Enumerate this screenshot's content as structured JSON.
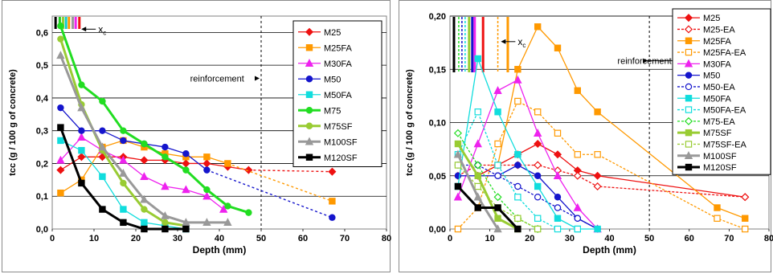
{
  "chart_data": [
    {
      "type": "line",
      "xlabel": "Depth (mm)",
      "ylabel": "tcc (g / 100 g of concrete)",
      "xlim": [
        0,
        80
      ],
      "ylim": [
        0,
        0.65
      ],
      "xticks": [
        0,
        10,
        20,
        30,
        40,
        50,
        60,
        70,
        80
      ],
      "xtick_labels": [
        "0",
        "10",
        "20",
        "30",
        "40",
        "50",
        "60",
        "70",
        "80"
      ],
      "yticks": [
        0,
        0.1,
        0.2,
        0.3,
        0.4,
        0.5,
        0.6
      ],
      "ytick_labels": [
        "0,0",
        "0,1",
        "0,2",
        "0,3",
        "0,4",
        "0,5",
        "0,6"
      ],
      "grid": "horizontal",
      "legend_position": "right",
      "annotations": [
        {
          "text": "reinforcement",
          "x": 33,
          "y": 0.46
        },
        {
          "text": "x",
          "subscript": "c",
          "x": 11,
          "y": 0.61
        }
      ],
      "reinforcement_depth": 50,
      "xc_markers": [
        {
          "x": 0.8,
          "color": "#000000"
        },
        {
          "x": 1.8,
          "color": "#22cc22"
        },
        {
          "x": 2.6,
          "color": "#99cc33"
        },
        {
          "x": 3.3,
          "color": "#11cccc"
        },
        {
          "x": 4.0,
          "color": "#ff9900"
        },
        {
          "x": 4.9,
          "color": "#999999"
        },
        {
          "x": 5.6,
          "color": "#ee22ee"
        },
        {
          "x": 6.5,
          "color": "#ee1111"
        }
      ],
      "series": [
        {
          "name": "M25",
          "color": "#ee1111",
          "marker": "diamond",
          "x": [
            2,
            7,
            12,
            17,
            22,
            27,
            32,
            37,
            42,
            47
          ],
          "y": [
            0.18,
            0.22,
            0.22,
            0.22,
            0.21,
            0.21,
            0.2,
            0.2,
            0.19,
            0.18
          ],
          "ext_x": [
            47,
            67
          ],
          "ext_y": [
            0.18,
            0.175
          ]
        },
        {
          "name": "M25FA",
          "color": "#ff9900",
          "marker": "square",
          "x": [
            2,
            7,
            12,
            17,
            22,
            27,
            32,
            37,
            42
          ],
          "y": [
            0.11,
            0.15,
            0.25,
            0.27,
            0.25,
            0.23,
            0.22,
            0.22,
            0.2
          ],
          "ext_x": [
            42,
            67
          ],
          "ext_y": [
            0.2,
            0.085
          ]
        },
        {
          "name": "M30FA",
          "color": "#ee22ee",
          "marker": "triangle",
          "x": [
            2,
            7,
            12,
            17,
            22,
            27,
            32,
            37,
            41
          ],
          "y": [
            0.21,
            0.28,
            0.24,
            0.21,
            0.16,
            0.13,
            0.12,
            0.1,
            0.06
          ]
        },
        {
          "name": "M50",
          "color": "#1515cc",
          "marker": "circle",
          "x": [
            2,
            7,
            12,
            17,
            22,
            27,
            32,
            37
          ],
          "y": [
            0.37,
            0.3,
            0.3,
            0.27,
            0.26,
            0.25,
            0.23,
            0.18
          ],
          "ext_x": [
            37,
            67
          ],
          "ext_y": [
            0.18,
            0.035
          ]
        },
        {
          "name": "M50FA",
          "color": "#11dddd",
          "marker": "square",
          "x": [
            2,
            7,
            12,
            17,
            22,
            27,
            32
          ],
          "y": [
            0.27,
            0.24,
            0.16,
            0.06,
            0.02,
            0.01,
            0.0
          ]
        },
        {
          "name": "M75",
          "color": "#22dd22",
          "marker": "circle",
          "width": 3,
          "x": [
            2,
            7,
            12,
            17,
            22,
            27,
            32,
            37,
            42,
            47
          ],
          "y": [
            0.62,
            0.44,
            0.39,
            0.3,
            0.26,
            0.22,
            0.18,
            0.12,
            0.07,
            0.05
          ]
        },
        {
          "name": "M75SF",
          "color": "#99cc33",
          "marker": "circle",
          "width": 3,
          "x": [
            2,
            7,
            12,
            17,
            22,
            27,
            32
          ],
          "y": [
            0.58,
            0.38,
            0.24,
            0.14,
            0.06,
            0.02,
            0.01
          ]
        },
        {
          "name": "M100SF",
          "color": "#999999",
          "marker": "triangle",
          "width": 3,
          "x": [
            2,
            7,
            12,
            17,
            22,
            27,
            32,
            37,
            42
          ],
          "y": [
            0.53,
            0.37,
            0.25,
            0.17,
            0.09,
            0.04,
            0.02,
            0.02,
            0.02
          ]
        },
        {
          "name": "M120SF",
          "color": "#000000",
          "marker": "square",
          "width": 3,
          "x": [
            2,
            7,
            12,
            17,
            22,
            27,
            32
          ],
          "y": [
            0.31,
            0.14,
            0.06,
            0.02,
            0.0,
            0.0,
            0.0
          ]
        }
      ]
    },
    {
      "type": "line",
      "xlabel": "Depth (mm)",
      "ylabel": "tcc (g / 100 g of concrete)",
      "xlim": [
        0,
        80
      ],
      "ylim": [
        0,
        0.2
      ],
      "xticks": [
        0,
        10,
        20,
        30,
        40,
        50,
        60,
        70,
        80
      ],
      "xtick_labels": [
        "0",
        "10",
        "20",
        "30",
        "40",
        "50",
        "60",
        "70",
        "80"
      ],
      "yticks": [
        0,
        0.05,
        0.1,
        0.15,
        0.2
      ],
      "ytick_labels": [
        "0,00",
        "0,05",
        "0,10",
        "0,15",
        "0,20"
      ],
      "grid": "horizontal",
      "legend_position": "right",
      "annotations": [
        {
          "text": "reinforcement",
          "x": 42,
          "y": 0.158
        },
        {
          "text": "x",
          "subscript": "c",
          "x": 17,
          "y": 0.176
        }
      ],
      "reinforcement_depth": 50,
      "xc_markers": [
        {
          "x": 1.0,
          "color": "#000000",
          "dashed": false
        },
        {
          "x": 2.2,
          "color": "#22dd22",
          "dashed": true
        },
        {
          "x": 3.0,
          "color": "#1515cc",
          "dashed": true
        },
        {
          "x": 3.8,
          "color": "#11dddd",
          "dashed": true
        },
        {
          "x": 4.8,
          "color": "#99cc33",
          "dashed": false
        },
        {
          "x": 5.6,
          "color": "#1515cc",
          "dashed": false
        },
        {
          "x": 6.2,
          "color": "#ee22ee",
          "dashed": false
        },
        {
          "x": 8.3,
          "color": "#ee1111",
          "dashed": false
        },
        {
          "x": 12.0,
          "color": "#ff9900",
          "dashed": true
        },
        {
          "x": 14.5,
          "color": "#ff9900",
          "dashed": false
        }
      ],
      "series": [
        {
          "name": "M25",
          "color": "#ee1111",
          "marker": "diamond",
          "x": [
            7,
            12,
            17,
            22,
            27,
            32,
            37,
            74
          ],
          "y": [
            0.05,
            0.06,
            0.07,
            0.08,
            0.07,
            0.055,
            0.05,
            0.03
          ]
        },
        {
          "name": "M25-EA",
          "color": "#ee1111",
          "marker": "diamond-open",
          "dashed": true,
          "x": [
            2,
            7,
            12,
            17,
            22,
            27,
            32,
            37,
            74
          ],
          "y": [
            0.05,
            0.06,
            0.06,
            0.06,
            0.06,
            0.055,
            0.05,
            0.04,
            0.03
          ]
        },
        {
          "name": "M25FA",
          "color": "#ff9900",
          "marker": "square",
          "x": [
            12,
            17,
            22,
            27,
            32,
            37,
            67,
            74
          ],
          "y": [
            0.06,
            0.15,
            0.19,
            0.17,
            0.13,
            0.11,
            0.02,
            0.01
          ]
        },
        {
          "name": "M25FA-EA",
          "color": "#ff9900",
          "marker": "square-open",
          "dashed": true,
          "x": [
            2,
            7,
            12,
            17,
            22,
            27,
            32,
            37,
            67,
            74
          ],
          "y": [
            0.0,
            0.02,
            0.08,
            0.12,
            0.11,
            0.09,
            0.07,
            0.07,
            0.01,
            0.0
          ]
        },
        {
          "name": "M30FA",
          "color": "#ee22ee",
          "marker": "triangle",
          "x": [
            2,
            7,
            12,
            17,
            22,
            27,
            32,
            37
          ],
          "y": [
            0.03,
            0.08,
            0.13,
            0.14,
            0.09,
            0.05,
            0.02,
            0.0
          ]
        },
        {
          "name": "M50",
          "color": "#1515cc",
          "marker": "circle",
          "x": [
            2,
            7,
            12,
            17,
            22,
            27,
            32,
            37
          ],
          "y": [
            0.05,
            0.05,
            0.05,
            0.06,
            0.05,
            0.03,
            0.01,
            0.0
          ]
        },
        {
          "name": "M50-EA",
          "color": "#1515cc",
          "marker": "circle-open",
          "dashed": true,
          "x": [
            2,
            7,
            12,
            17,
            22,
            27,
            32,
            37
          ],
          "y": [
            0.06,
            0.06,
            0.05,
            0.04,
            0.03,
            0.02,
            0.01,
            0.0
          ]
        },
        {
          "name": "M50FA",
          "color": "#11dddd",
          "marker": "square",
          "x": [
            2,
            7,
            12,
            17,
            22,
            27,
            32,
            37
          ],
          "y": [
            0.04,
            0.16,
            0.11,
            0.07,
            0.04,
            0.01,
            0.0,
            0.0
          ]
        },
        {
          "name": "M50FA-EA",
          "color": "#11dddd",
          "marker": "square-open",
          "dashed": true,
          "x": [
            2,
            7,
            12,
            17,
            22,
            27,
            32
          ],
          "y": [
            0.07,
            0.11,
            0.06,
            0.03,
            0.01,
            0.0,
            0.0
          ]
        },
        {
          "name": "M75-EA",
          "color": "#22dd22",
          "marker": "diamond-open",
          "dashed": true,
          "x": [
            2,
            7,
            12,
            17,
            22
          ],
          "y": [
            0.09,
            0.06,
            0.03,
            0.01,
            0.0
          ]
        },
        {
          "name": "M75SF",
          "color": "#99cc33",
          "marker": "square",
          "width": 3,
          "x": [
            2,
            7,
            12,
            17
          ],
          "y": [
            0.08,
            0.05,
            0.01,
            0.0
          ]
        },
        {
          "name": "M75SF-EA",
          "color": "#99cc33",
          "marker": "square-open",
          "dashed": true,
          "x": [
            2,
            7,
            12,
            17,
            22
          ],
          "y": [
            0.06,
            0.04,
            0.02,
            0.01,
            0.0
          ]
        },
        {
          "name": "M100SF",
          "color": "#999999",
          "marker": "triangle",
          "width": 3,
          "x": [
            2,
            7,
            12
          ],
          "y": [
            0.07,
            0.03,
            0.0
          ]
        },
        {
          "name": "M120SF",
          "color": "#000000",
          "marker": "square",
          "width": 3,
          "x": [
            2,
            7,
            12,
            17
          ],
          "y": [
            0.04,
            0.02,
            0.02,
            0.0
          ]
        }
      ]
    }
  ]
}
